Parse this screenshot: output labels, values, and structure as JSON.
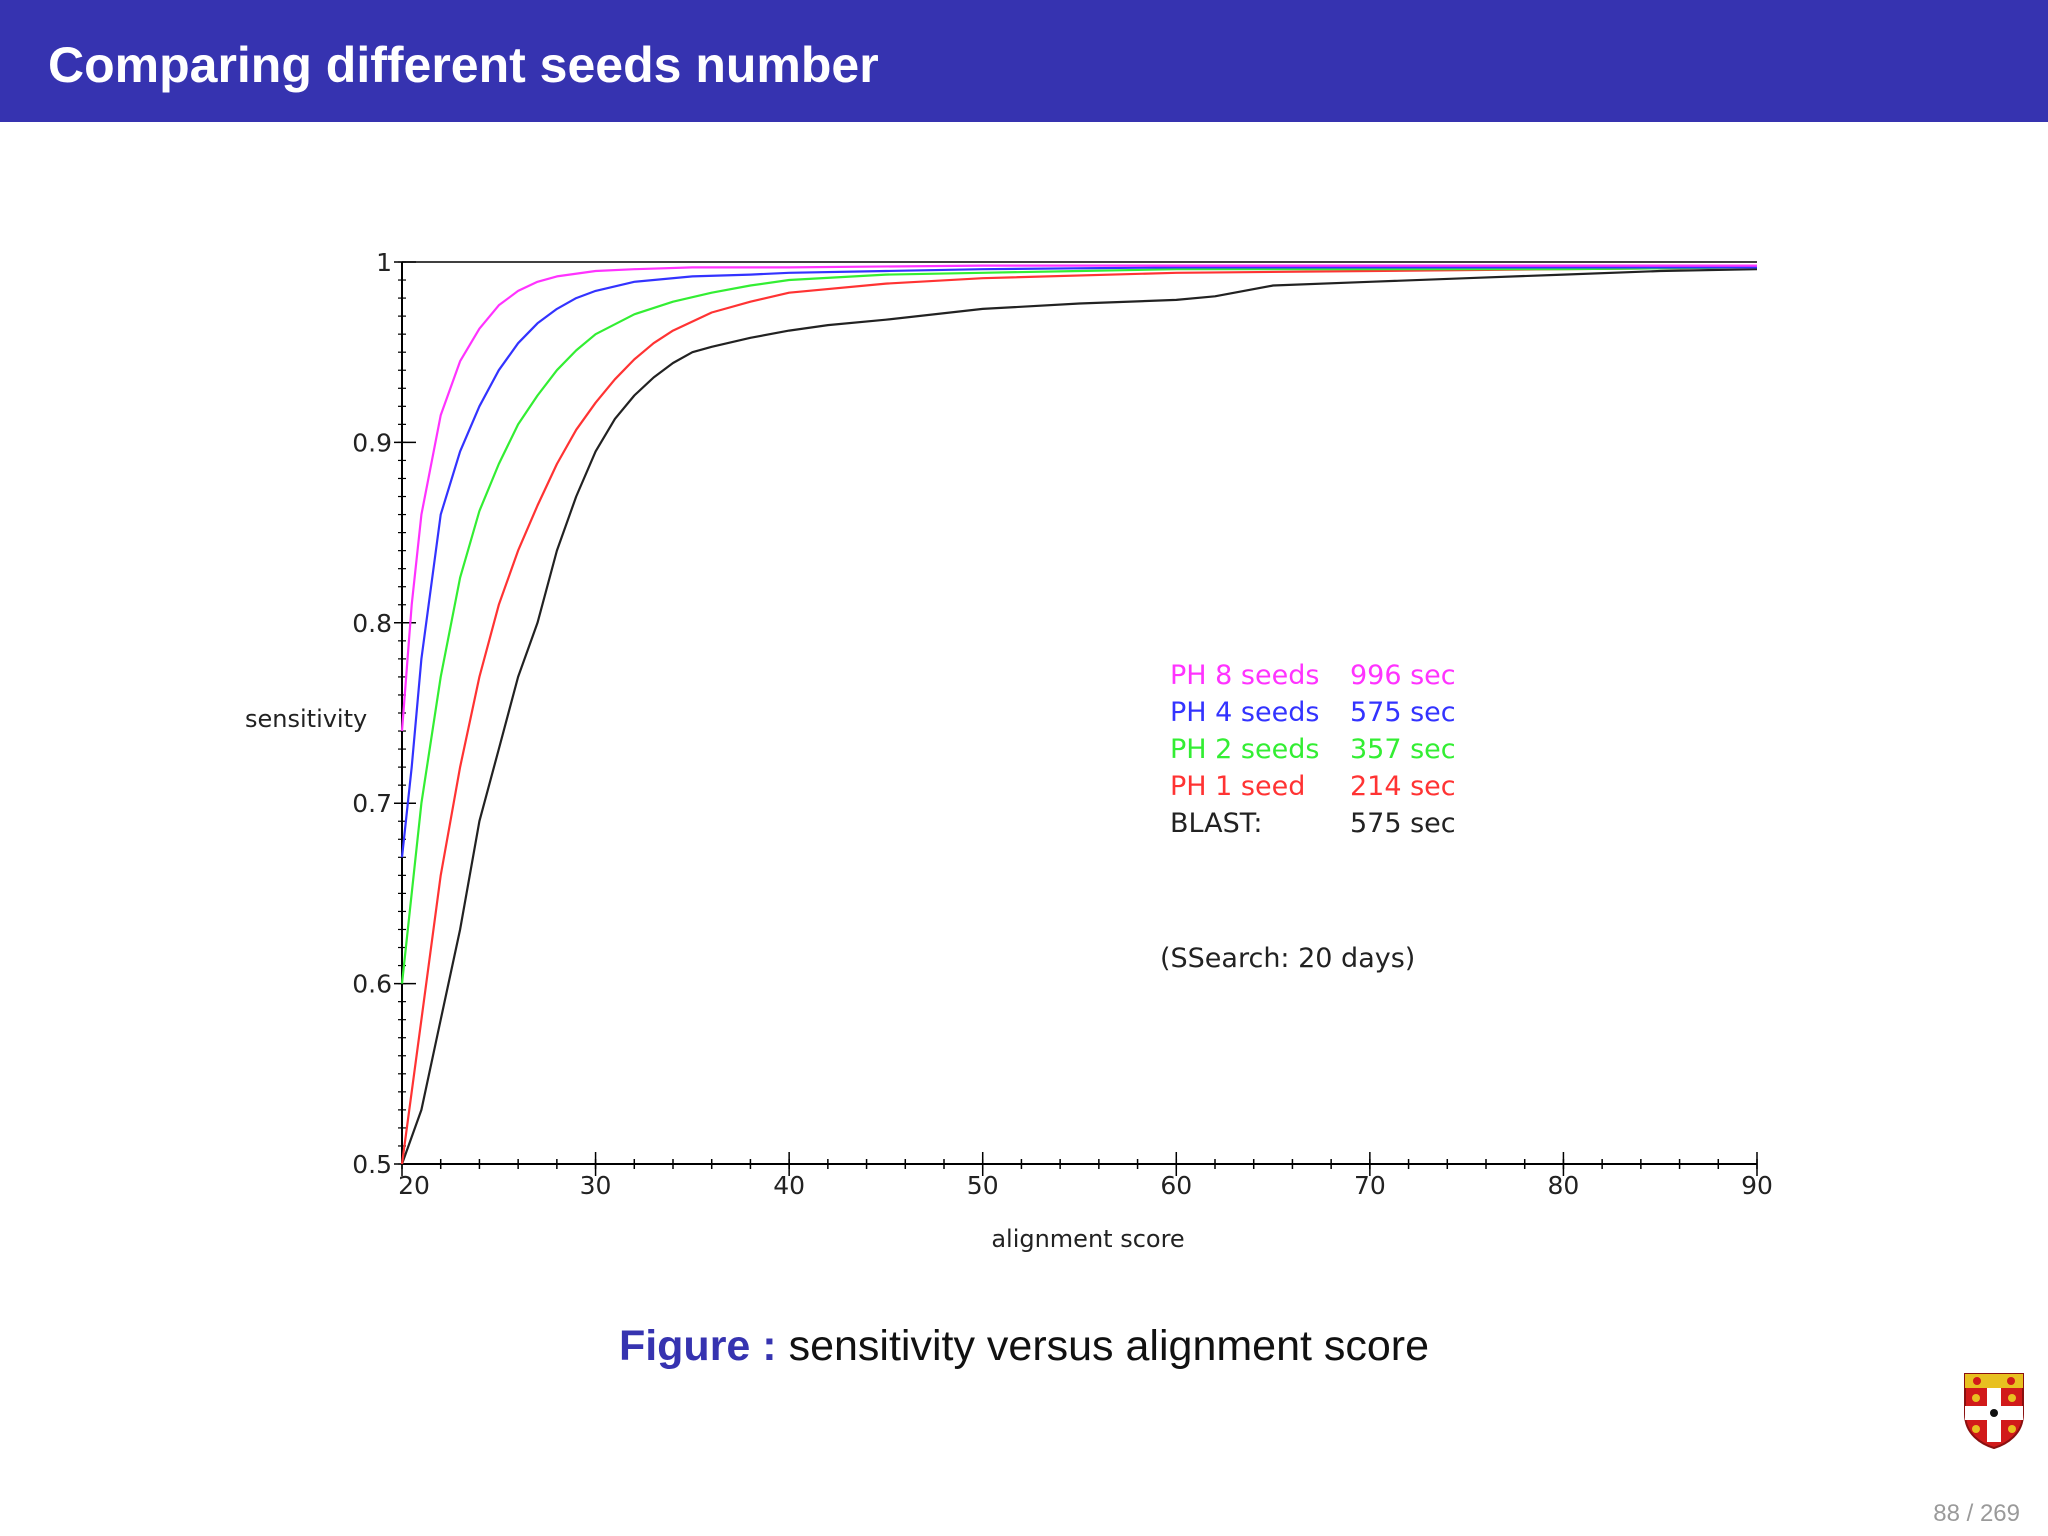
{
  "slide": {
    "title": "Comparing different seeds number",
    "caption_label": "Figure :",
    "caption_text": "sensitivity versus alignment score",
    "page_current": "88",
    "page_total": "269"
  },
  "chart_data": {
    "type": "line",
    "title": "",
    "xlabel": "alignment score",
    "ylabel": "sensitivity",
    "xlim": [
      20,
      90
    ],
    "ylim": [
      0.5,
      1.0
    ],
    "x_ticks": [
      20,
      30,
      40,
      50,
      60,
      70,
      80,
      90
    ],
    "y_ticks": [
      0.5,
      0.6,
      0.7,
      0.8,
      0.9,
      1
    ],
    "y_tick_labels": [
      "0.5",
      "0.6",
      "0.7",
      "0.8",
      "0.9",
      "1"
    ],
    "grid": false,
    "series": [
      {
        "name": "PH 8 seeds",
        "time_label": "996 sec",
        "color": "#ff33ff",
        "x": [
          20,
          20.5,
          21,
          22,
          23,
          24,
          25,
          26,
          27,
          28,
          30,
          32,
          35,
          40,
          50,
          60,
          70,
          80,
          90
        ],
        "y": [
          0.74,
          0.81,
          0.86,
          0.915,
          0.945,
          0.963,
          0.976,
          0.984,
          0.989,
          0.992,
          0.995,
          0.996,
          0.997,
          0.997,
          0.998,
          0.998,
          0.998,
          0.998,
          0.998
        ]
      },
      {
        "name": "PH 4 seeds",
        "time_label": "575 sec",
        "color": "#3333ff",
        "x": [
          20,
          20.5,
          21,
          22,
          23,
          24,
          25,
          26,
          27,
          28,
          29,
          30,
          32,
          35,
          38,
          40,
          45,
          50,
          60,
          70,
          80,
          90
        ],
        "y": [
          0.67,
          0.72,
          0.78,
          0.86,
          0.895,
          0.92,
          0.94,
          0.955,
          0.966,
          0.974,
          0.98,
          0.984,
          0.989,
          0.992,
          0.993,
          0.994,
          0.995,
          0.996,
          0.997,
          0.997,
          0.997,
          0.997
        ]
      },
      {
        "name": "PH 2 seeds",
        "time_label": "357 sec",
        "color": "#33ee33",
        "x": [
          20,
          21,
          22,
          23,
          24,
          25,
          26,
          27,
          28,
          29,
          30,
          32,
          34,
          36,
          38,
          40,
          45,
          50,
          55,
          60,
          70,
          80,
          90
        ],
        "y": [
          0.6,
          0.7,
          0.77,
          0.825,
          0.862,
          0.888,
          0.91,
          0.926,
          0.94,
          0.951,
          0.96,
          0.971,
          0.978,
          0.983,
          0.987,
          0.99,
          0.993,
          0.994,
          0.995,
          0.996,
          0.996,
          0.996,
          0.997
        ]
      },
      {
        "name": "PH 1 seed",
        "time_label": "214 sec",
        "color": "#ff3333",
        "x": [
          20,
          21,
          22,
          23,
          24,
          25,
          26,
          27,
          28,
          29,
          30,
          31,
          32,
          33,
          34,
          36,
          38,
          40,
          45,
          50,
          60,
          70,
          80,
          90
        ],
        "y": [
          0.5,
          0.58,
          0.66,
          0.72,
          0.77,
          0.81,
          0.84,
          0.865,
          0.888,
          0.907,
          0.922,
          0.935,
          0.946,
          0.955,
          0.962,
          0.972,
          0.978,
          0.983,
          0.988,
          0.991,
          0.994,
          0.995,
          0.996,
          0.997
        ]
      },
      {
        "name": "BLAST:",
        "time_label": "575 sec",
        "color": "#222222",
        "x": [
          20,
          21,
          22,
          23,
          24,
          25,
          26,
          27,
          28,
          29,
          30,
          31,
          32,
          33,
          34,
          35,
          36,
          38,
          40,
          42,
          45,
          50,
          55,
          60,
          62,
          65,
          70,
          75,
          80,
          85,
          90
        ],
        "y": [
          0.5,
          0.53,
          0.58,
          0.63,
          0.69,
          0.73,
          0.77,
          0.8,
          0.84,
          0.87,
          0.895,
          0.913,
          0.926,
          0.936,
          0.944,
          0.95,
          0.953,
          0.958,
          0.962,
          0.965,
          0.968,
          0.974,
          0.977,
          0.979,
          0.981,
          0.987,
          0.989,
          0.991,
          0.993,
          0.995,
          0.996
        ]
      }
    ],
    "annotation": "(SSearch:  20 days)"
  }
}
